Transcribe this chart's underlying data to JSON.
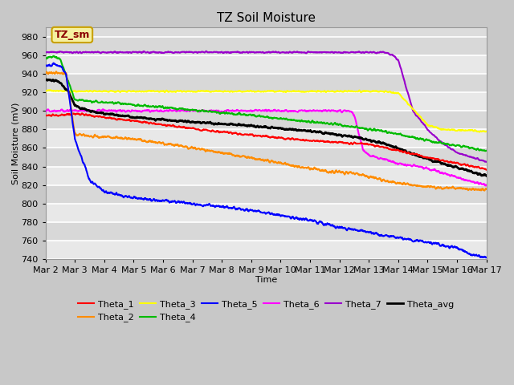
{
  "title": "TZ Soil Moisture",
  "xlabel": "Time",
  "ylabel": "Soil Moisture (mV)",
  "ylim": [
    740,
    990
  ],
  "xlim": [
    0,
    15
  ],
  "fig_bg": "#c8c8c8",
  "plot_bg": "#dcdcdc",
  "grid_color": "#f0f0f0",
  "label_box_text": "TZ_sm",
  "label_box_color": "#f5f0a0",
  "label_box_edge": "#c8a000",
  "label_text_color": "#8b0000",
  "xtick_labels": [
    "Mar 2",
    "Mar 3",
    "Mar 4",
    "Mar 5",
    "Mar 6",
    "Mar 7",
    "Mar 8",
    "Mar 9",
    "Mar 10",
    "Mar 11",
    "Mar 12",
    "Mar 13",
    "Mar 14",
    "Mar 15",
    "Mar 16",
    "Mar 17"
  ],
  "yticks": [
    740,
    760,
    780,
    800,
    820,
    840,
    860,
    880,
    900,
    920,
    940,
    960,
    980
  ],
  "colors": {
    "Theta_1": "#ff0000",
    "Theta_2": "#ff8c00",
    "Theta_3": "#ffff00",
    "Theta_4": "#00bb00",
    "Theta_5": "#0000ff",
    "Theta_6": "#ff00ff",
    "Theta_7": "#9900cc",
    "Theta_avg": "#000000"
  }
}
